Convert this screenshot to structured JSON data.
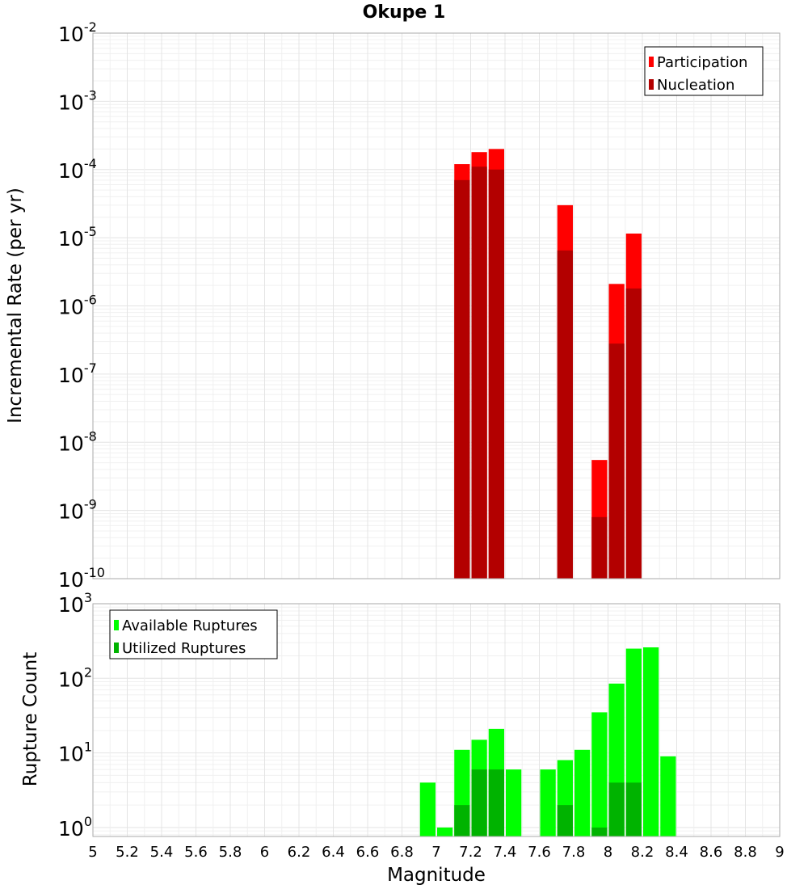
{
  "title": "Okupe 1",
  "chart_data": [
    {
      "type": "bar",
      "title": "Okupe 1",
      "xlabel": "Magnitude",
      "ylabel": "Incremental Rate (per yr)",
      "yscale": "log",
      "ylim_exp": [
        -10,
        -2
      ],
      "xlim": [
        5,
        9
      ],
      "bar_width": 0.1,
      "grid": true,
      "legend_position": "top-right",
      "y_tick_base": "10",
      "y_tick_exponents": [
        "-2",
        "-3",
        "-4",
        "-5",
        "-6",
        "-7",
        "-8",
        "-9",
        "-10"
      ],
      "series": [
        {
          "name": "Participation",
          "color": "#ff0000",
          "x": [
            7.15,
            7.25,
            7.35,
            7.75,
            7.95,
            8.05,
            8.15
          ],
          "values": [
            0.00012,
            0.00018,
            0.0002,
            3e-05,
            5.5e-09,
            2.1e-06,
            1.15e-05
          ]
        },
        {
          "name": "Nucleation",
          "color": "#b30000",
          "x": [
            7.15,
            7.25,
            7.35,
            7.75,
            7.95,
            8.05,
            8.15
          ],
          "values": [
            7e-05,
            0.00011,
            0.0001,
            6.5e-06,
            8e-10,
            2.8e-07,
            1.8e-06
          ]
        }
      ]
    },
    {
      "type": "bar",
      "xlabel": "Magnitude",
      "ylabel": "Rupture Count",
      "yscale": "log",
      "ylim_exp": [
        -0.12,
        3
      ],
      "xlim": [
        5,
        9
      ],
      "bar_width": 0.1,
      "grid": true,
      "legend_position": "top-left",
      "y_tick_base": "10",
      "y_tick_exponents": [
        "0",
        "1",
        "2",
        "3"
      ],
      "series": [
        {
          "name": "Available Ruptures",
          "color": "#00ff00",
          "x": [
            6.95,
            7.05,
            7.15,
            7.25,
            7.35,
            7.45,
            7.65,
            7.75,
            7.85,
            7.95,
            8.05,
            8.15,
            8.25,
            8.35
          ],
          "values": [
            4,
            1,
            11,
            15,
            21,
            6,
            6,
            8,
            11,
            35,
            85,
            250,
            260,
            9
          ]
        },
        {
          "name": "Utilized Ruptures",
          "color": "#00b300",
          "x": [
            7.15,
            7.25,
            7.35,
            7.75,
            7.95,
            8.05,
            8.15
          ],
          "values": [
            2,
            6,
            6,
            2,
            1,
            4,
            4
          ]
        }
      ]
    }
  ],
  "x_ticks": [
    "5",
    "5.2",
    "5.4",
    "5.6",
    "5.8",
    "6",
    "6.2",
    "6.4",
    "6.6",
    "6.8",
    "7",
    "7.2",
    "7.4",
    "7.6",
    "7.8",
    "8",
    "8.2",
    "8.4",
    "8.6",
    "8.8",
    "9"
  ]
}
